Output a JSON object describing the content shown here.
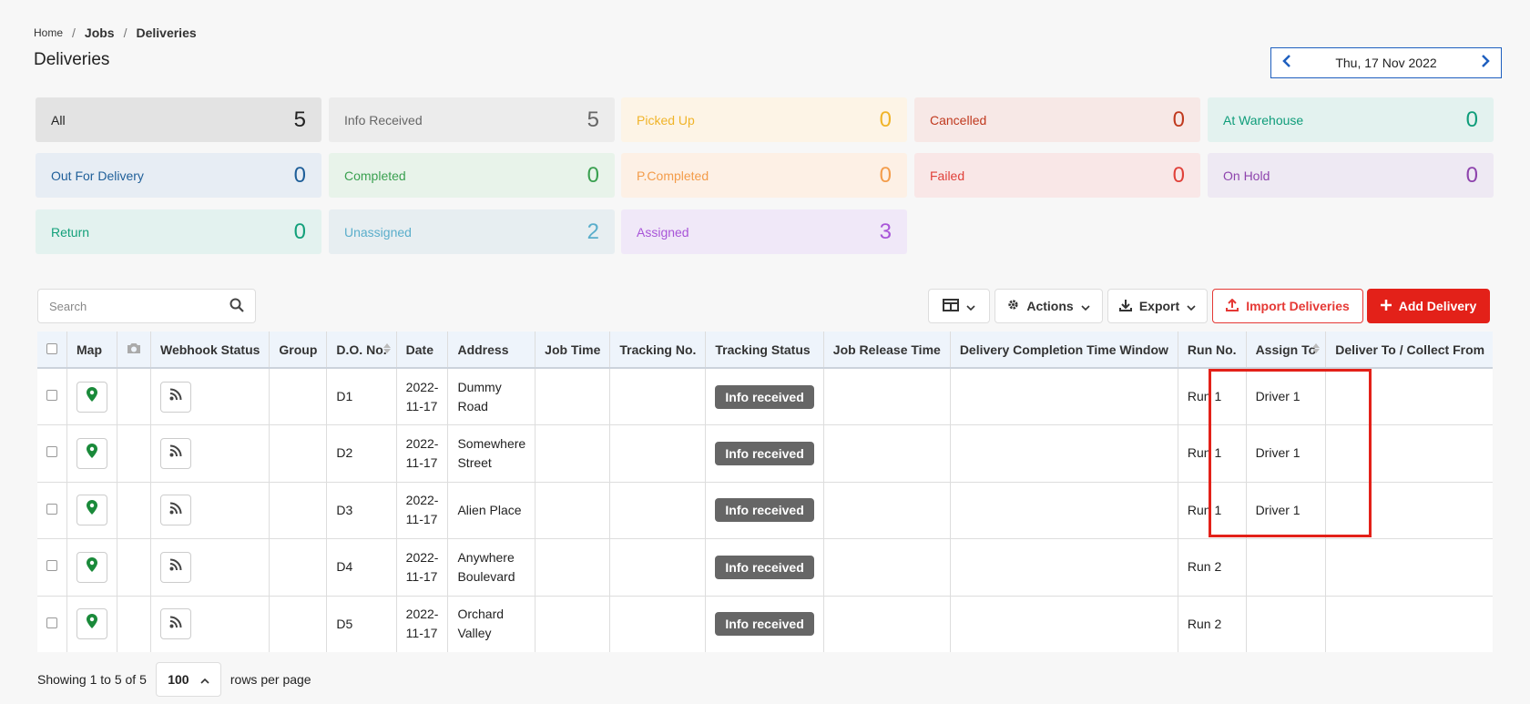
{
  "breadcrumb": {
    "home": "Home",
    "jobs": "Jobs",
    "current": "Deliveries"
  },
  "page_title": "Deliveries",
  "date_nav": {
    "label": "Thu, 17 Nov 2022"
  },
  "cards": [
    {
      "label": "All",
      "count": "5",
      "bg": "#e3e3e3",
      "fg": "#222222"
    },
    {
      "label": "Info Received",
      "count": "5",
      "bg": "#ececec",
      "fg": "#666666"
    },
    {
      "label": "Picked Up",
      "count": "0",
      "bg": "#fdf4e6",
      "fg": "#f0b429"
    },
    {
      "label": "Cancelled",
      "count": "0",
      "bg": "#f7e8e6",
      "fg": "#c0391e"
    },
    {
      "label": "At Warehouse",
      "count": "0",
      "bg": "#e3f2ef",
      "fg": "#0f9d7a"
    },
    {
      "label": "Out For Delivery",
      "count": "0",
      "bg": "#e7edf4",
      "fg": "#1f5f99"
    },
    {
      "label": "Completed",
      "count": "0",
      "bg": "#e8f3ea",
      "fg": "#3aa050"
    },
    {
      "label": "P.Completed",
      "count": "0",
      "bg": "#fdf0e5",
      "fg": "#f39c4a"
    },
    {
      "label": "Failed",
      "count": "0",
      "bg": "#f9e7e7",
      "fg": "#e0413a"
    },
    {
      "label": "On Hold",
      "count": "0",
      "bg": "#eee9f3",
      "fg": "#8e44ad"
    },
    {
      "label": "Return",
      "count": "0",
      "bg": "#e3f2ef",
      "fg": "#13a07a"
    },
    {
      "label": "Unassigned",
      "count": "2",
      "bg": "#e7eef1",
      "fg": "#5aaecb"
    },
    {
      "label": "Assigned",
      "count": "3",
      "bg": "#f0e8f8",
      "fg": "#a855d8"
    }
  ],
  "search": {
    "placeholder": "Search"
  },
  "toolbar": {
    "actions_label": "Actions",
    "export_label": "Export",
    "import_label": "Import Deliveries",
    "add_label": "Add Delivery"
  },
  "table": {
    "headers": [
      "",
      "Map",
      "",
      "Webhook Status",
      "Group",
      "D.O. No.",
      "Date",
      "Address",
      "Job Time",
      "Tracking No.",
      "Tracking Status",
      "Job Release Time",
      "Delivery Completion Time Window",
      "Run No.",
      "Assign To",
      "Deliver To / Collect From"
    ],
    "rows": [
      {
        "do_no": "D1",
        "date": "2022-\n11-17",
        "address": "Dummy\nRoad",
        "tracking_status": "Info received",
        "run_no": "Run 1",
        "assign_to": "Driver 1"
      },
      {
        "do_no": "D2",
        "date": "2022-\n11-17",
        "address": "Somewhere\nStreet",
        "tracking_status": "Info received",
        "run_no": "Run 1",
        "assign_to": "Driver 1"
      },
      {
        "do_no": "D3",
        "date": "2022-\n11-17",
        "address": "Alien Place",
        "tracking_status": "Info received",
        "run_no": "Run 1",
        "assign_to": "Driver 1"
      },
      {
        "do_no": "D4",
        "date": "2022-\n11-17",
        "address": "Anywhere\nBoulevard",
        "tracking_status": "Info received",
        "run_no": "Run 2",
        "assign_to": ""
      },
      {
        "do_no": "D5",
        "date": "2022-\n11-17",
        "address": "Orchard\nValley",
        "tracking_status": "Info received",
        "run_no": "Run 2",
        "assign_to": ""
      }
    ]
  },
  "pager": {
    "showing": "Showing 1 to 5 of 5",
    "page_size": "100",
    "rows_per_page": "rows per page"
  },
  "colors": {
    "accent": "#1e5fbf",
    "danger": "#e32119",
    "map_pin": "#1a8a3a"
  }
}
